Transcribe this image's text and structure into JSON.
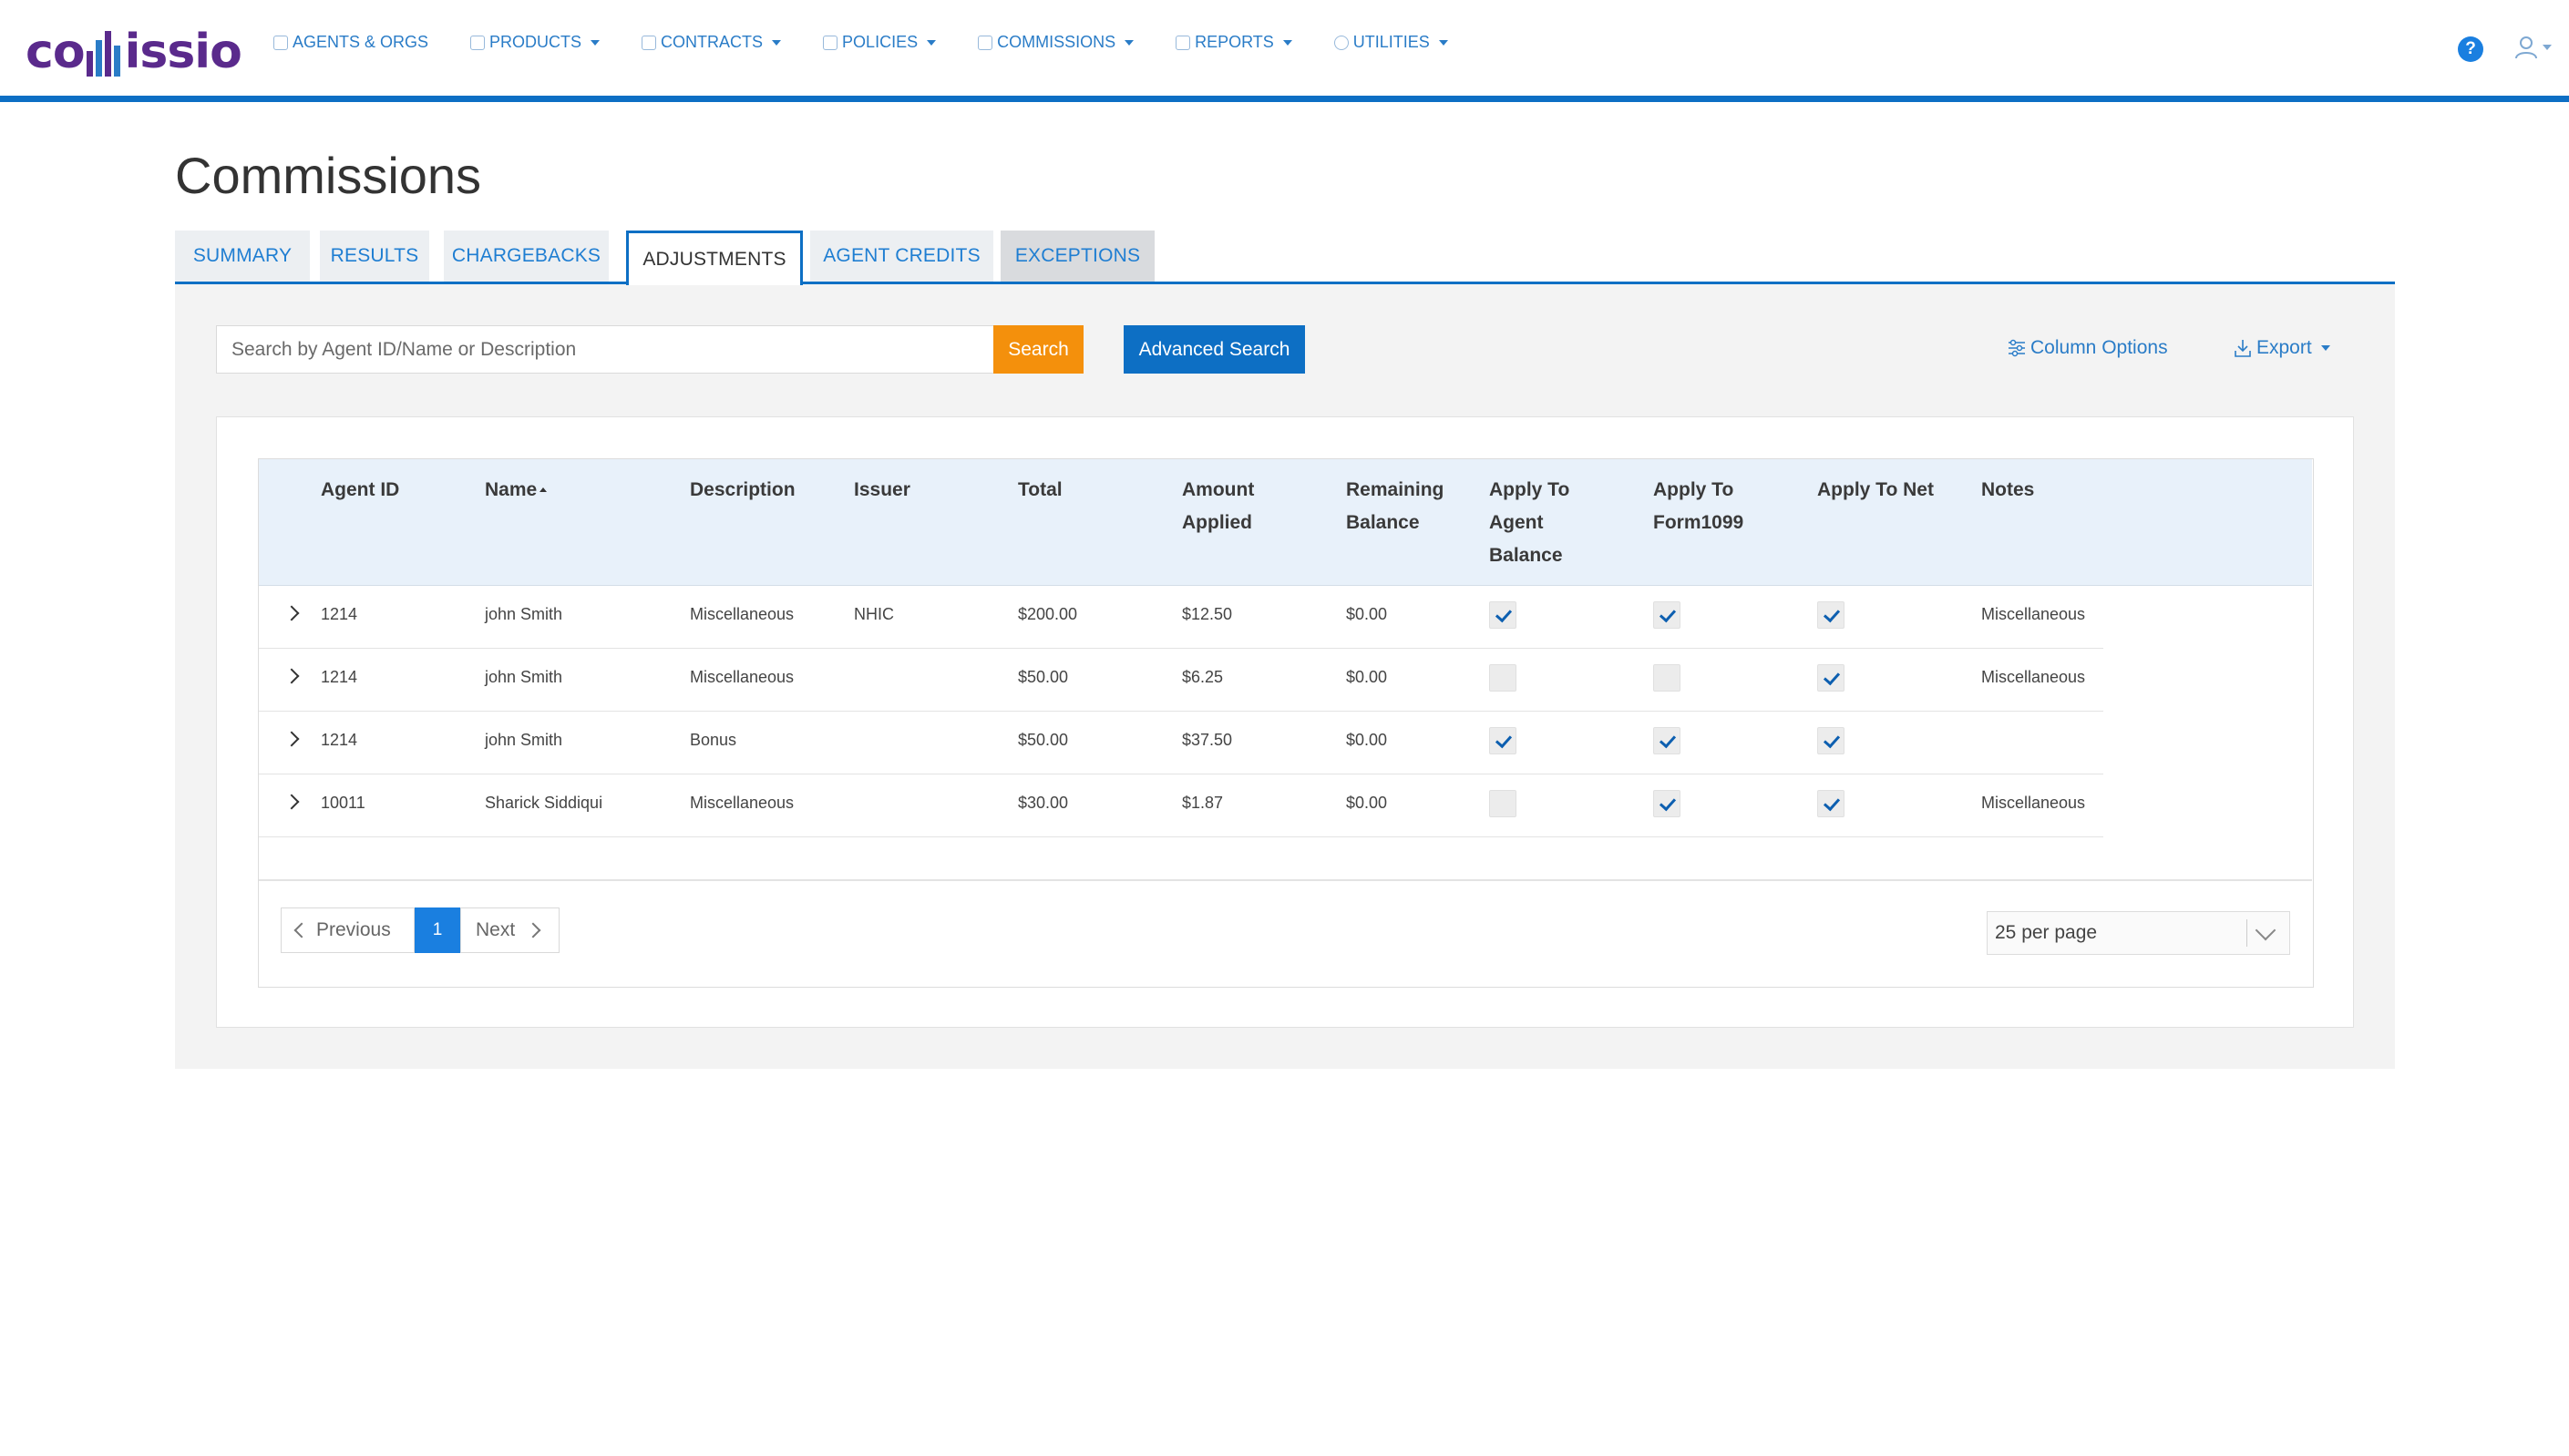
{
  "logo": {
    "text_left": "co",
    "text_right": "issio"
  },
  "nav": [
    {
      "label": "AGENTS & ORGS",
      "icon": "users-icon",
      "dropdown": false
    },
    {
      "label": "PRODUCTS",
      "icon": "box-icon",
      "dropdown": true
    },
    {
      "label": "CONTRACTS",
      "icon": "contract-icon",
      "dropdown": true
    },
    {
      "label": "POLICIES",
      "icon": "document-icon",
      "dropdown": true
    },
    {
      "label": "COMMISSIONS",
      "icon": "commissions-icon",
      "dropdown": true
    },
    {
      "label": "REPORTS",
      "icon": "report-icon",
      "dropdown": true
    },
    {
      "label": "UTILITIES",
      "icon": "globe-icon",
      "dropdown": true
    }
  ],
  "header": {
    "help_label": "?",
    "user_icon": "user-icon"
  },
  "page": {
    "title": "Commissions"
  },
  "tabs": [
    {
      "label": "SUMMARY"
    },
    {
      "label": "RESULTS"
    },
    {
      "label": "CHARGEBACKS"
    },
    {
      "label": "ADJUSTMENTS"
    },
    {
      "label": "AGENT CREDITS"
    },
    {
      "label": "EXCEPTIONS"
    }
  ],
  "active_tab": "ADJUSTMENTS",
  "toolbar": {
    "search_placeholder": "Search by Agent ID/Name or Description",
    "search_value": "",
    "search_label": "Search",
    "advanced_label": "Advanced Search",
    "column_options_label": "Column Options",
    "export_label": "Export"
  },
  "table": {
    "columns": [
      {
        "label": "Agent ID"
      },
      {
        "label": "Name",
        "sorted": "asc"
      },
      {
        "label": "Description"
      },
      {
        "label": "Issuer"
      },
      {
        "label": "Total"
      },
      {
        "label": "Amount Applied"
      },
      {
        "label": "Remaining Balance"
      },
      {
        "label": "Apply To Agent Balance"
      },
      {
        "label": "Apply To Form1099"
      },
      {
        "label": "Apply To Net"
      },
      {
        "label": "Notes"
      }
    ],
    "rows": [
      {
        "agent_id": "1214",
        "name": "john Smith",
        "description": "Miscellaneous",
        "issuer": "NHIC",
        "total": "$200.00",
        "applied": "$12.50",
        "remaining": "$0.00",
        "apply_agent_balance": true,
        "apply_form1099": true,
        "apply_net": true,
        "notes": "Miscellaneous"
      },
      {
        "agent_id": "1214",
        "name": "john Smith",
        "description": "Miscellaneous",
        "issuer": "",
        "total": "$50.00",
        "applied": "$6.25",
        "remaining": "$0.00",
        "apply_agent_balance": false,
        "apply_form1099": false,
        "apply_net": true,
        "notes": "Miscellaneous"
      },
      {
        "agent_id": "1214",
        "name": "john Smith",
        "description": "Bonus",
        "issuer": "",
        "total": "$50.00",
        "applied": "$37.50",
        "remaining": "$0.00",
        "apply_agent_balance": true,
        "apply_form1099": true,
        "apply_net": true,
        "notes": ""
      },
      {
        "agent_id": "10011",
        "name": "Sharick Siddiqui",
        "description": "Miscellaneous",
        "issuer": "",
        "total": "$30.00",
        "applied": "$1.87",
        "remaining": "$0.00",
        "apply_agent_balance": false,
        "apply_form1099": true,
        "apply_net": true,
        "notes": "Miscellaneous"
      }
    ]
  },
  "pagination": {
    "previous_label": "Previous",
    "current_page": "1",
    "next_label": "Next",
    "per_page": "25 per page"
  },
  "colors": {
    "accent": "#0d6fc4",
    "search_button": "#f4900c",
    "link": "#2a7cc7",
    "header_bg": "#e8f1fa",
    "logo": "#5a2a8c"
  }
}
